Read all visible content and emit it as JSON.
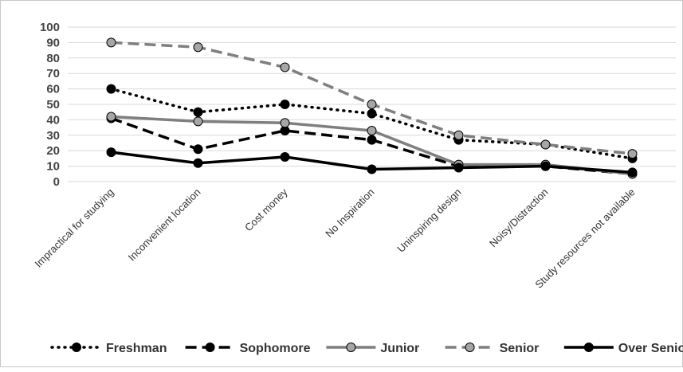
{
  "chart_data": {
    "type": "line",
    "categories": [
      "Impractical for studying",
      "Inconvenient location",
      "Cost money",
      "No Inspiration",
      "Uninspiring design",
      "Noisy/Distraction",
      "Study resources not available"
    ],
    "ylim": [
      0,
      100
    ],
    "yticks": [
      "0",
      "10",
      "20",
      "30",
      "40",
      "50",
      "60",
      "70",
      "80",
      "90",
      "100"
    ],
    "grid": true,
    "legend_position": "bottom",
    "series": [
      {
        "name": "Freshman",
        "values": [
          60,
          45,
          50,
          44,
          27,
          24,
          15
        ],
        "line_color": "#000000",
        "marker_color": "#000000",
        "dash": "dot"
      },
      {
        "name": "Sophomore",
        "values": [
          41,
          21,
          33,
          27,
          10,
          10,
          5
        ],
        "line_color": "#000000",
        "marker_color": "#000000",
        "dash": "dash"
      },
      {
        "name": "Junior",
        "values": [
          42,
          39,
          38,
          33,
          11,
          11,
          5
        ],
        "line_color": "#7f7f7f",
        "marker_color": "#a6a6a6",
        "dash": "solid"
      },
      {
        "name": "Senior",
        "values": [
          90,
          87,
          74,
          50,
          30,
          24,
          18
        ],
        "line_color": "#7f7f7f",
        "marker_color": "#a6a6a6",
        "dash": "dash"
      },
      {
        "name": "Over Senior",
        "values": [
          19,
          12,
          16,
          8,
          9,
          10,
          6
        ],
        "line_color": "#000000",
        "marker_color": "#000000",
        "dash": "solid"
      }
    ]
  }
}
